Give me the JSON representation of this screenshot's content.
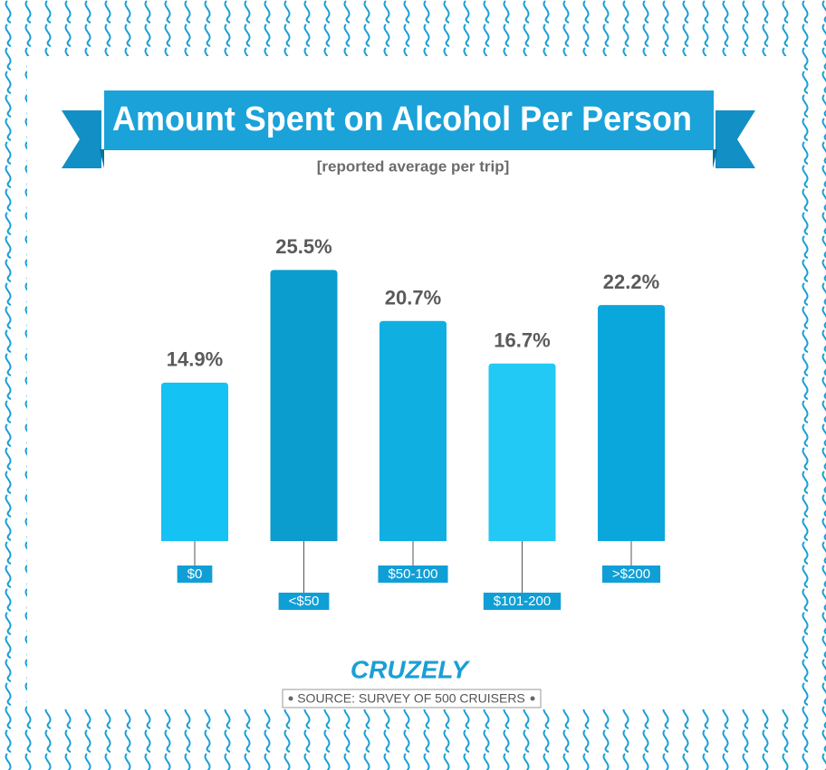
{
  "chart_data": {
    "type": "bar",
    "title": "Amount Spent on Alcohol Per Person",
    "subtitle": "[reported average per trip]",
    "categories": [
      "$0",
      "<$50",
      "$50-100",
      "$101-200",
      ">$200"
    ],
    "values": [
      14.9,
      25.5,
      20.7,
      16.7,
      22.2
    ],
    "value_labels": [
      "14.9%",
      "25.5%",
      "20.7%",
      "16.7%",
      "22.2%"
    ],
    "colors": [
      "#14c2f3",
      "#0a9dcd",
      "#0fafe2",
      "#22c9f4",
      "#0aa7dc"
    ],
    "brand": "CRUZELY",
    "source": "SOURCE: SURVEY OF 500 CRUISERS"
  }
}
